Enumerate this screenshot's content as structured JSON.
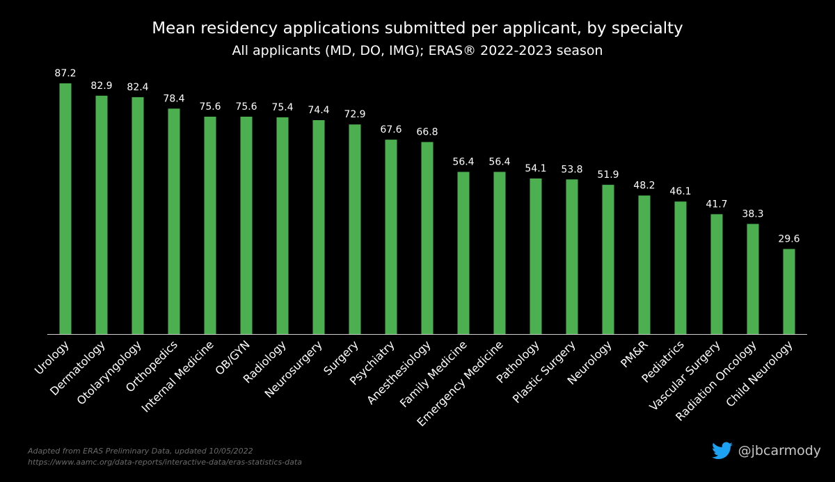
{
  "header": {
    "title": "Mean residency applications submitted per applicant, by specialty",
    "subtitle": "All applicants (MD, DO, IMG); ERAS® 2022-2023 season"
  },
  "footer": {
    "source_line1": "Adapted from ERAS Preliminary Data, updated 10/05/2022",
    "source_line2": "https://www.aamc.org/data-reports/interactive-data/eras-statistics-data",
    "handle": "@jbcarmody",
    "handle_icon": "twitter-bird-icon"
  },
  "colors": {
    "bar": "#4caf50",
    "background": "#000000",
    "text": "#ffffff",
    "axis": "#d0d0d0",
    "twitter": "#1da1f2"
  },
  "chart_data": {
    "type": "bar",
    "categories": [
      "Urology",
      "Dermatology",
      "Otolaryngology",
      "Orthopedics",
      "Internal Medicine",
      "OB/GYN",
      "Radiology",
      "Neurosurgery",
      "Surgery",
      "Psychiatry",
      "Anesthesiology",
      "Family Medicine",
      "Emergency Medicine",
      "Pathology",
      "Plastic Surgery",
      "Neurology",
      "PM&R",
      "Pediatrics",
      "Vascular Surgery",
      "Radiation Oncology",
      "Child Neurology"
    ],
    "values": [
      87.2,
      82.9,
      82.4,
      78.4,
      75.6,
      75.6,
      75.4,
      74.4,
      72.9,
      67.6,
      66.8,
      56.4,
      56.4,
      54.1,
      53.8,
      51.9,
      48.2,
      46.1,
      41.7,
      38.3,
      29.6
    ],
    "title": "Mean residency applications submitted per applicant, by specialty",
    "subtitle": "All applicants (MD, DO, IMG); ERAS® 2022-2023 season",
    "xlabel": "",
    "ylabel": "",
    "ylim": [
      0,
      90
    ],
    "grid": false,
    "legend": "none",
    "data_labels": true
  }
}
